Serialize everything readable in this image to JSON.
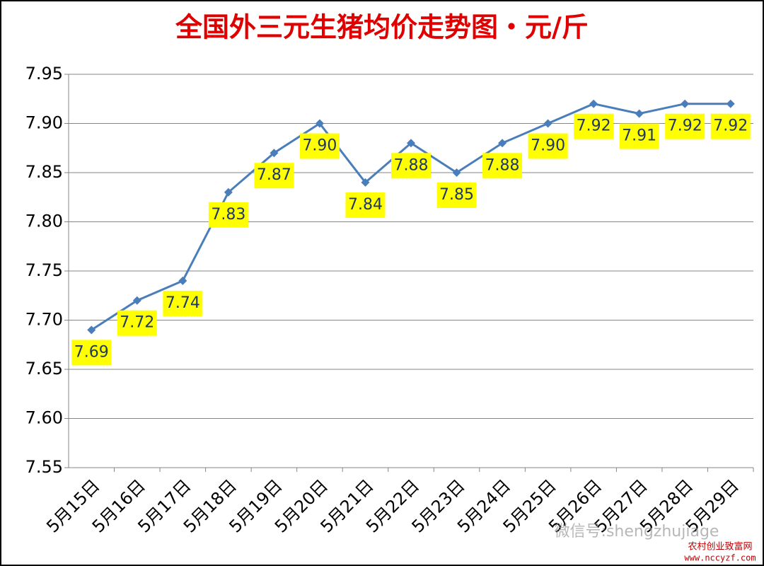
{
  "chart_data": {
    "type": "line",
    "title": "全国外三元生猪均价走势图・元/斤",
    "categories": [
      "5月15日",
      "5月16日",
      "5月17日",
      "5月18日",
      "5月19日",
      "5月20日",
      "5月21日",
      "5月22日",
      "5月23日",
      "5月24日",
      "5月25日",
      "5月26日",
      "5月27日",
      "5月28日",
      "5月29日"
    ],
    "series": [
      {
        "color": "#4a7ebb",
        "values": [
          7.69,
          7.72,
          7.74,
          7.83,
          7.87,
          7.9,
          7.84,
          7.88,
          7.85,
          7.88,
          7.9,
          7.92,
          7.91,
          7.92,
          7.92
        ],
        "value_labels": [
          "7.69",
          "7.72",
          "7.74",
          "7.83",
          "7.87",
          "7.90",
          "7.84",
          "7.88",
          "7.85",
          "7.88",
          "7.90",
          "7.92",
          "7.91",
          "7.92",
          "7.92"
        ]
      }
    ],
    "ylim": [
      7.55,
      7.95
    ],
    "yticks": [
      7.55,
      {
        "value": 7.6,
        "label": "7.60"
      },
      7.65,
      {
        "value": 7.7,
        "label": "7.70"
      },
      7.75,
      {
        "value": 7.8,
        "label": "7.80"
      },
      7.85,
      {
        "value": 7.9,
        "label": "7.90"
      },
      7.95
    ],
    "grid": true,
    "watermark": "微信号:shengzhujiage",
    "source": "农村创业致富网",
    "source_url": "www.nccyzf.com"
  }
}
